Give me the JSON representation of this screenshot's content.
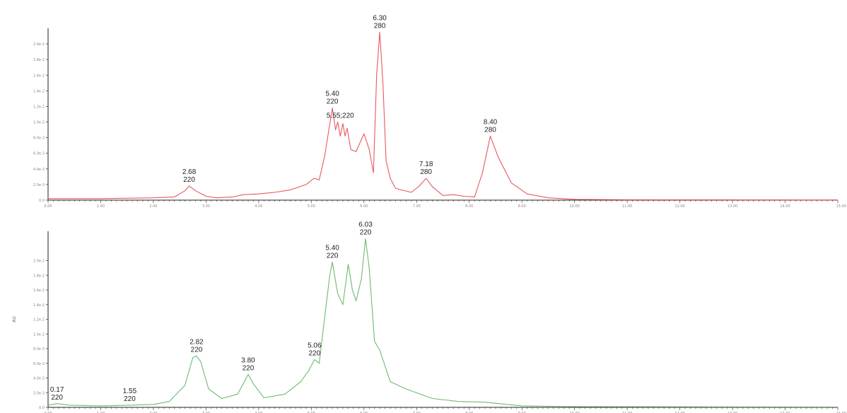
{
  "chart_data": [
    {
      "type": "line",
      "color": "#e8585e",
      "ylabel": "",
      "xlim": [
        0,
        15
      ],
      "ylim": [
        0,
        2.2
      ],
      "x_ticks": [
        "0.00",
        "1.00",
        "2.00",
        "3.00",
        "4.00",
        "5.00",
        "6.00",
        "7.00",
        "8.00",
        "9.00",
        "10.00",
        "11.00",
        "12.00",
        "13.00",
        "14.00",
        "15.00"
      ],
      "y_ticks": [
        {
          "value": 0.0,
          "label": "0.0"
        },
        {
          "value": 0.2,
          "label": "2.0e-3"
        },
        {
          "value": 0.4,
          "label": "4.0e-3"
        },
        {
          "value": 0.6,
          "label": "6.0e-3"
        },
        {
          "value": 0.8,
          "label": "8.0e-3"
        },
        {
          "value": 1.0,
          "label": "1.0e-2"
        },
        {
          "value": 1.2,
          "label": "1.2e-2"
        },
        {
          "value": 1.4,
          "label": "1.4e-2"
        },
        {
          "value": 1.6,
          "label": "1.6e-2"
        },
        {
          "value": 1.8,
          "label": "1.8e-2"
        },
        {
          "value": 2.0,
          "label": "2.0e-2"
        }
      ],
      "series": [
        {
          "points": [
            [
              0,
              0.02
            ],
            [
              1,
              0.02
            ],
            [
              2,
              0.03
            ],
            [
              2.4,
              0.04
            ],
            [
              2.6,
              0.12
            ],
            [
              2.68,
              0.18
            ],
            [
              2.8,
              0.12
            ],
            [
              3.0,
              0.05
            ],
            [
              3.2,
              0.03
            ],
            [
              3.5,
              0.04
            ],
            [
              3.7,
              0.07
            ],
            [
              4.0,
              0.08
            ],
            [
              4.3,
              0.1
            ],
            [
              4.6,
              0.13
            ],
            [
              4.9,
              0.2
            ],
            [
              5.05,
              0.28
            ],
            [
              5.15,
              0.26
            ],
            [
              5.25,
              0.55
            ],
            [
              5.4,
              1.18
            ],
            [
              5.46,
              0.9
            ],
            [
              5.5,
              1.0
            ],
            [
              5.55,
              0.82
            ],
            [
              5.6,
              0.98
            ],
            [
              5.64,
              0.82
            ],
            [
              5.68,
              0.92
            ],
            [
              5.75,
              0.65
            ],
            [
              5.85,
              0.62
            ],
            [
              6.0,
              0.85
            ],
            [
              6.1,
              0.65
            ],
            [
              6.18,
              0.35
            ],
            [
              6.24,
              1.6
            ],
            [
              6.3,
              2.15
            ],
            [
              6.36,
              1.5
            ],
            [
              6.42,
              0.5
            ],
            [
              6.5,
              0.28
            ],
            [
              6.6,
              0.15
            ],
            [
              6.9,
              0.1
            ],
            [
              7.05,
              0.18
            ],
            [
              7.18,
              0.28
            ],
            [
              7.3,
              0.17
            ],
            [
              7.5,
              0.06
            ],
            [
              7.7,
              0.07
            ],
            [
              7.9,
              0.05
            ],
            [
              8.1,
              0.04
            ],
            [
              8.25,
              0.35
            ],
            [
              8.4,
              0.82
            ],
            [
              8.55,
              0.55
            ],
            [
              8.8,
              0.22
            ],
            [
              9.1,
              0.08
            ],
            [
              9.5,
              0.03
            ],
            [
              10,
              0.01
            ],
            [
              11,
              0.005
            ],
            [
              15,
              0.003
            ]
          ]
        }
      ],
      "annotations": [
        {
          "x": 2.68,
          "y": 0.18,
          "lines": [
            "2.68",
            "220"
          ]
        },
        {
          "x": 5.4,
          "y": 1.18,
          "lines": [
            "5.40",
            "220"
          ]
        },
        {
          "x": 5.55,
          "y": 1.0,
          "lines": [
            "5.55;220"
          ]
        },
        {
          "x": 6.3,
          "y": 2.15,
          "lines": [
            "6.30",
            "280"
          ]
        },
        {
          "x": 7.18,
          "y": 0.28,
          "lines": [
            "7.18",
            "280"
          ]
        },
        {
          "x": 8.4,
          "y": 0.82,
          "lines": [
            "8.40",
            "280"
          ]
        }
      ]
    },
    {
      "type": "line",
      "color": "#6fba6f",
      "ylabel": "AU",
      "xlim": [
        0,
        15
      ],
      "ylim": [
        0,
        2.4
      ],
      "x_ticks": [
        "0.00",
        "1.00",
        "2.00",
        "3.00",
        "4.00",
        "5.00",
        "6.00",
        "7.00",
        "8.00",
        "9.00",
        "10.00",
        "11.00",
        "12.00",
        "13.00",
        "14.00",
        "15.00"
      ],
      "y_ticks": [
        {
          "value": 0.0,
          "label": "0.0"
        },
        {
          "value": 0.2,
          "label": "2.0e-3"
        },
        {
          "value": 0.4,
          "label": "4.0e-3"
        },
        {
          "value": 0.6,
          "label": "6.0e-3"
        },
        {
          "value": 0.8,
          "label": "8.0e-3"
        },
        {
          "value": 1.0,
          "label": "1.0e-2"
        },
        {
          "value": 1.2,
          "label": "1.2e-2"
        },
        {
          "value": 1.4,
          "label": "1.4e-2"
        },
        {
          "value": 1.6,
          "label": "1.6e-2"
        },
        {
          "value": 1.8,
          "label": "1.8e-2"
        },
        {
          "value": 2.0,
          "label": "2.0e-2"
        }
      ],
      "series": [
        {
          "points": [
            [
              0,
              0.03
            ],
            [
              0.17,
              0.05
            ],
            [
              0.4,
              0.03
            ],
            [
              1,
              0.02
            ],
            [
              1.55,
              0.03
            ],
            [
              2.0,
              0.04
            ],
            [
              2.3,
              0.08
            ],
            [
              2.6,
              0.3
            ],
            [
              2.75,
              0.68
            ],
            [
              2.82,
              0.7
            ],
            [
              2.9,
              0.62
            ],
            [
              3.05,
              0.25
            ],
            [
              3.3,
              0.12
            ],
            [
              3.6,
              0.18
            ],
            [
              3.75,
              0.38
            ],
            [
              3.8,
              0.45
            ],
            [
              3.9,
              0.32
            ],
            [
              4.1,
              0.13
            ],
            [
              4.5,
              0.18
            ],
            [
              4.8,
              0.35
            ],
            [
              4.95,
              0.5
            ],
            [
              5.06,
              0.65
            ],
            [
              5.15,
              0.6
            ],
            [
              5.25,
              1.2
            ],
            [
              5.35,
              1.8
            ],
            [
              5.4,
              1.98
            ],
            [
              5.5,
              1.55
            ],
            [
              5.6,
              1.4
            ],
            [
              5.7,
              1.95
            ],
            [
              5.78,
              1.6
            ],
            [
              5.85,
              1.45
            ],
            [
              5.95,
              1.75
            ],
            [
              6.03,
              2.3
            ],
            [
              6.1,
              1.9
            ],
            [
              6.2,
              0.9
            ],
            [
              6.3,
              0.78
            ],
            [
              6.5,
              0.35
            ],
            [
              6.8,
              0.25
            ],
            [
              7.3,
              0.12
            ],
            [
              7.8,
              0.08
            ],
            [
              8.3,
              0.07
            ],
            [
              9,
              0.02
            ],
            [
              10,
              0.01
            ],
            [
              15,
              0.005
            ]
          ]
        }
      ],
      "annotations": [
        {
          "x": 0.17,
          "y": 0.05,
          "lines": [
            "0.17",
            "220"
          ]
        },
        {
          "x": 1.55,
          "y": 0.03,
          "lines": [
            "1.55",
            "220"
          ]
        },
        {
          "x": 2.82,
          "y": 0.7,
          "lines": [
            "2.82",
            "220"
          ]
        },
        {
          "x": 3.8,
          "y": 0.45,
          "lines": [
            "3.80",
            "220"
          ]
        },
        {
          "x": 5.06,
          "y": 0.65,
          "lines": [
            "5.06",
            "220"
          ]
        },
        {
          "x": 5.4,
          "y": 1.98,
          "lines": [
            "5.40",
            "220"
          ]
        },
        {
          "x": 6.03,
          "y": 2.3,
          "lines": [
            "6.03",
            "220"
          ]
        }
      ]
    }
  ]
}
